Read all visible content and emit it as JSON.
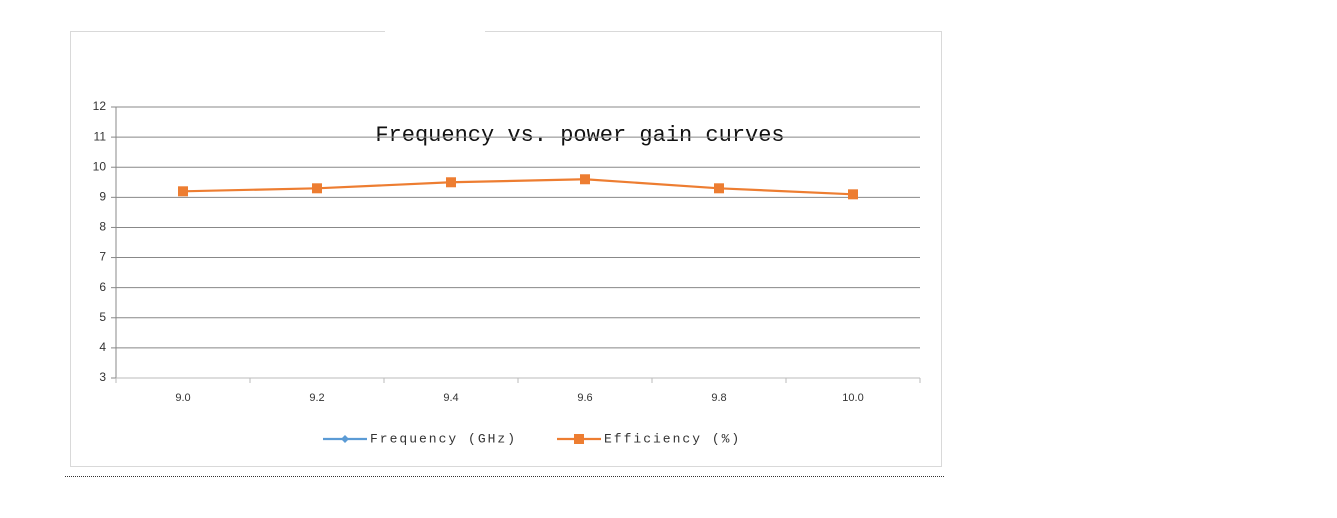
{
  "chart_data": {
    "type": "line",
    "title": "Frequency vs. power gain curves",
    "categories": [
      "9.0",
      "9.2",
      "9.4",
      "9.6",
      "9.8",
      "10.0"
    ],
    "series": [
      {
        "name": "Frequency (GHz)",
        "color": "#5b9bd5",
        "values": [
          null,
          null,
          null,
          null,
          null,
          null
        ]
      },
      {
        "name": "Efficiency (%)",
        "color": "#ed7d31",
        "values": [
          9.2,
          9.3,
          9.5,
          9.6,
          9.3,
          9.1
        ]
      }
    ],
    "ylim": [
      3,
      12
    ],
    "yticks": [
      3,
      4,
      5,
      6,
      7,
      8,
      9,
      10,
      11,
      12
    ],
    "grid": true,
    "legend": "bottom"
  }
}
